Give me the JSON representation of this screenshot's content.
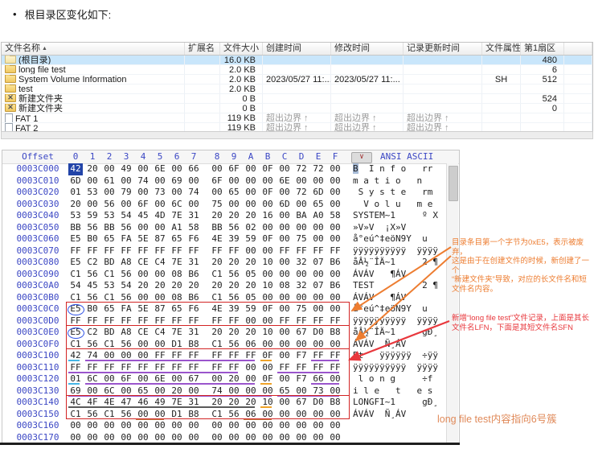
{
  "header": {
    "bullet": "•",
    "title": "根目录区变化如下:"
  },
  "file_table": {
    "sort_indicator": "▲",
    "deleted_mark": "✕",
    "columns": [
      "文件名称",
      "扩展名",
      "文件大小",
      "创建时间",
      "修改时间",
      "记录更新时间",
      "文件属性",
      "第1扇区",
      ""
    ],
    "rows": [
      {
        "icon": "folder-root",
        "name": "(根目录)",
        "ext": "",
        "size": "16.0 KB",
        "created": "",
        "modified": "",
        "record_updated": "",
        "attr": "",
        "sector": "480",
        "selected": true
      },
      {
        "icon": "folder",
        "name": "long file test",
        "ext": "",
        "size": "2.0 KB",
        "created": "",
        "modified": "",
        "record_updated": "",
        "attr": "",
        "sector": "6"
      },
      {
        "icon": "folder",
        "name": "System Volume Information",
        "ext": "",
        "size": "2.0 KB",
        "created": "2023/05/27 11:...",
        "modified": "2023/05/27 11:...",
        "record_updated": "",
        "attr": "SH",
        "sector": "512"
      },
      {
        "icon": "folder",
        "name": "test",
        "ext": "",
        "size": "2.0 KB",
        "created": "",
        "modified": "",
        "record_updated": "",
        "attr": "",
        "sector": ""
      },
      {
        "icon": "folder-deleted",
        "name": "新建文件夹",
        "ext": "",
        "size": "0 B",
        "created": "",
        "modified": "",
        "record_updated": "",
        "attr": "",
        "sector": "524"
      },
      {
        "icon": "folder-deleted",
        "name": "新建文件夹",
        "ext": "",
        "size": "0 B",
        "created": "",
        "modified": "",
        "record_updated": "",
        "attr": "",
        "sector": "0"
      },
      {
        "icon": "file",
        "name": "FAT 1",
        "ext": "",
        "size": "119 KB",
        "created": "超出边界 ↑",
        "modified": "超出边界 ↑",
        "record_updated": "超出边界 ↑",
        "attr": "",
        "sector": ""
      },
      {
        "icon": "file",
        "name": "FAT 2",
        "ext": "",
        "size": "119 KB",
        "created": "超出边界 ↑",
        "modified": "超出边界 ↑",
        "record_updated": "超出边界 ↑",
        "attr": "",
        "sector": ""
      }
    ]
  },
  "hex_editor": {
    "header": {
      "offset_label": "Offset",
      "cols": [
        "0",
        "1",
        "2",
        "3",
        "4",
        "5",
        "6",
        "7",
        "8",
        "9",
        "A",
        "B",
        "C",
        "D",
        "E",
        "F"
      ],
      "dropdown_glyph": "∨",
      "encoding_label": "ANSI ASCII"
    },
    "rows": [
      {
        "offset": "0003C000",
        "bytes": "42 20 00 49 00 6E 00 66 00 6F 00 0F 00 72 72 00",
        "ascii": "B  I n f o   rr ",
        "sel": 0,
        "asel": 0
      },
      {
        "offset": "0003C010",
        "bytes": "6D 00 61 00 74 00 69 00 6F 00 00 00 6E 00 00 00",
        "ascii": "m a t i o   n   "
      },
      {
        "offset": "0003C020",
        "bytes": "01 53 00 79 00 73 00 74 00 65 00 0F 00 72 6D 00",
        "ascii": " S y s t e   rm "
      },
      {
        "offset": "0003C030",
        "bytes": "20 00 56 00 6F 00 6C 00 75 00 00 00 6D 00 65 00",
        "ascii": "  V o l u   m e "
      },
      {
        "offset": "0003C040",
        "bytes": "53 59 53 54 45 4D 7E 31 20 20 20 16 00 BA A0 58",
        "ascii": "SYSTEM~1     º X"
      },
      {
        "offset": "0003C050",
        "bytes": "BB 56 BB 56 00 00 A1 58 BB 56 02 00 00 00 00 00",
        "ascii": "»V»V  ¡X»V      "
      },
      {
        "offset": "0003C060",
        "bytes": "E5 B0 65 FA 5E 87 65 F6 4E 39 59 0F 00 75 00 00",
        "ascii": "å°eú^‡eöN9Y  u  "
      },
      {
        "offset": "0003C070",
        "bytes": "FF FF FF FF FF FF FF FF FF FF 00 00 FF FF FF FF",
        "ascii": "ÿÿÿÿÿÿÿÿÿÿ  ÿÿÿÿ"
      },
      {
        "offset": "0003C080",
        "bytes": "E5 C2 BD A8 CE C4 7E 31 20 20 20 10 00 32 07 B6",
        "ascii": "åÂ½¨ÎÄ~1     2 ¶"
      },
      {
        "offset": "0003C090",
        "bytes": "C1 56 C1 56 00 00 08 B6 C1 56 05 00 00 00 00 00",
        "ascii": "ÁVÁV   ¶ÁV      "
      },
      {
        "offset": "0003C0A0",
        "bytes": "54 45 53 54 20 20 20 20 20 20 20 10 08 32 07 B6",
        "ascii": "TEST         2 ¶"
      },
      {
        "offset": "0003C0B0",
        "bytes": "C1 56 C1 56 00 00 08 B6 C1 56 05 00 00 00 00 00",
        "ascii": "ÁVÁV   ¶ÁV      "
      },
      {
        "offset": "0003C0C0",
        "bytes": "E5 B0 65 FA 5E 87 65 F6 4E 39 59 0F 00 75 00 00",
        "ascii": "å°eú^‡eöN9Y  u  ",
        "circle": [
          0
        ]
      },
      {
        "offset": "0003C0D0",
        "bytes": "FF FF FF FF FF FF FF FF FF FF 00 00 FF FF FF FF",
        "ascii": "ÿÿÿÿÿÿÿÿÿÿ  ÿÿÿÿ"
      },
      {
        "offset": "0003C0E0",
        "bytes": "E5 C2 BD A8 CE C4 7E 31 20 20 20 10 00 67 D0 B8",
        "ascii": "åÂ½¨ÎÄ~1     gÐ¸",
        "circle": [
          0
        ]
      },
      {
        "offset": "0003C0F0",
        "bytes": "C1 56 C1 56 00 00 D1 B8 C1 56 06 00 00 00 00 00",
        "ascii": "ÁVÁV  Ñ¸ÁV      "
      },
      {
        "offset": "0003C100",
        "bytes": "42 74 00 00 00 FF FF FF FF FF FF 0F 00 F7 FF FF",
        "ascii": "Bt   ÿÿÿÿÿÿ  ÷ÿÿ",
        "marks": [
          {
            "s": 0,
            "e": 0,
            "c": "cyan"
          },
          {
            "s": 1,
            "e": 10,
            "c": "purple"
          },
          {
            "s": 11,
            "e": 11,
            "c": "orange"
          },
          {
            "s": 14,
            "e": 15,
            "c": "purple"
          }
        ]
      },
      {
        "offset": "0003C110",
        "bytes": "FF FF FF FF FF FF FF FF FF FF 00 00 FF FF FF FF",
        "ascii": "ÿÿÿÿÿÿÿÿÿÿ  ÿÿÿÿ",
        "marks": [
          {
            "s": 0,
            "e": 9,
            "c": "purple"
          },
          {
            "s": 12,
            "e": 15,
            "c": "purple"
          }
        ]
      },
      {
        "offset": "0003C120",
        "bytes": "01 6C 00 6F 00 6E 00 67 00 20 00 0F 00 F7 66 00",
        "ascii": " l o n g     ÷f ",
        "marks": [
          {
            "s": 0,
            "e": 0,
            "c": "cyan"
          },
          {
            "s": 1,
            "e": 10,
            "c": "purple"
          },
          {
            "s": 11,
            "e": 11,
            "c": "orange"
          },
          {
            "s": 14,
            "e": 15,
            "c": "purple"
          }
        ]
      },
      {
        "offset": "0003C130",
        "bytes": "69 00 6C 00 65 00 20 00 74 00 00 00 65 00 73 00",
        "ascii": "i l e   t   e s ",
        "marks": [
          {
            "s": 0,
            "e": 11,
            "c": "purple"
          },
          {
            "s": 12,
            "e": 15,
            "c": "purple"
          }
        ]
      },
      {
        "offset": "0003C140",
        "bytes": "4C 4F 4E 47 46 49 7E 31 20 20 20 10 00 67 D0 B8",
        "ascii": "LONGFI~1     gÐ¸",
        "marks": [
          {
            "s": 0,
            "e": 10,
            "c": "gray"
          },
          {
            "s": 11,
            "e": 11,
            "c": "orange"
          }
        ]
      },
      {
        "offset": "0003C150",
        "bytes": "C1 56 C1 56 00 00 D1 B8 C1 56 06 00 00 00 00 00",
        "ascii": "ÁVÁV  Ñ¸ÁV      ",
        "marks": [
          {
            "s": 4,
            "e": 5,
            "c": "brown"
          },
          {
            "s": 10,
            "e": 11,
            "c": "brown"
          }
        ]
      },
      {
        "offset": "0003C160",
        "bytes": "00 00 00 00 00 00 00 00 00 00 00 00 00 00 00 00",
        "ascii": "                "
      },
      {
        "offset": "0003C170",
        "bytes": "00 00 00 00 00 00 00 00 00 00 00 00 00 00 00 00",
        "ascii": "                "
      }
    ],
    "red_boxes": [
      {
        "from": 12,
        "to": 13
      },
      {
        "from": 14,
        "to": 15
      },
      {
        "from": 16,
        "to": 19
      },
      {
        "from": 20,
        "to": 21
      }
    ]
  },
  "annotations": {
    "deleted_note": "目录条目第一个字节为0xE5，表示被废弃，\n这是由于在创建文件的时候，新创建了一个\n“新建文件夹”导致，对应的长文件名和短\n文件名内容。",
    "new_record_note": "新增“long file test”文件记录，上面是其长\n文件名LFN，下面是其短文件名SFN",
    "cluster_note": "long file test内容指向6号簇"
  },
  "colors": {
    "marks": {
      "cyan": "#45b6e6",
      "purple": "#9a55cc",
      "orange": "#efa32a",
      "gray": "#5a5a5a",
      "brown": "#bf7b42"
    },
    "red_box": "#d22424",
    "blue_circle": "#2d50e6",
    "annotation_orange": "#ed7d31",
    "annotation_red": "#e8383d",
    "selection_blue": "#2244a8",
    "selected_row": "#c9e6fb"
  }
}
